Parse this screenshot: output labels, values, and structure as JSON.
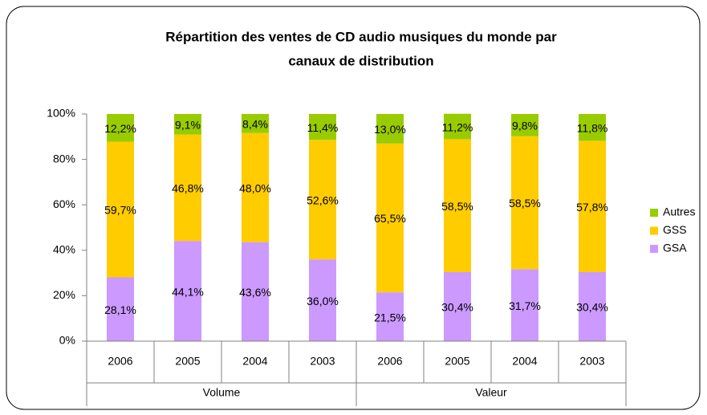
{
  "chart_data": {
    "type": "stacked_bar",
    "title": "Répartition des ventes de CD audio musiques du monde par",
    "title_line2": "canaux de distribution",
    "categories": [
      "2006",
      "2005",
      "2004",
      "2003",
      "2006",
      "2005",
      "2004",
      "2003"
    ],
    "groups": [
      "Volume",
      "Valeur"
    ],
    "series": [
      {
        "name": "GSA",
        "color": "#cc99ff",
        "values": [
          28.1,
          44.1,
          43.6,
          36.0,
          21.5,
          30.4,
          31.7,
          30.4
        ],
        "value_labels": [
          "28,1%",
          "44,1%",
          "43,6%",
          "36,0%",
          "21,5%",
          "30,4%",
          "31,7%",
          "30,4%"
        ]
      },
      {
        "name": "GSS",
        "color": "#ffcc00",
        "values": [
          59.7,
          46.8,
          48.0,
          52.6,
          65.5,
          58.5,
          58.5,
          57.8
        ],
        "value_labels": [
          "59,7%",
          "46,8%",
          "48,0%",
          "52,6%",
          "65,5%",
          "58,5%",
          "58,5%",
          "57,8%"
        ]
      },
      {
        "name": "Autres",
        "color": "#99cc00",
        "values": [
          12.2,
          9.1,
          8.4,
          11.4,
          13.0,
          11.2,
          9.8,
          11.8
        ],
        "value_labels": [
          "12,2%",
          "9,1%",
          "8,4%",
          "11,4%",
          "13,0%",
          "11,2%",
          "9,8%",
          "11,8%"
        ]
      }
    ],
    "ylim": [
      0,
      100
    ],
    "yticks": [
      {
        "value": 0,
        "label": "0%"
      },
      {
        "value": 20,
        "label": "20%"
      },
      {
        "value": 40,
        "label": "40%"
      },
      {
        "value": 60,
        "label": "60%"
      },
      {
        "value": 80,
        "label": "80%"
      },
      {
        "value": 100,
        "label": "100%"
      }
    ],
    "legend": "right"
  }
}
